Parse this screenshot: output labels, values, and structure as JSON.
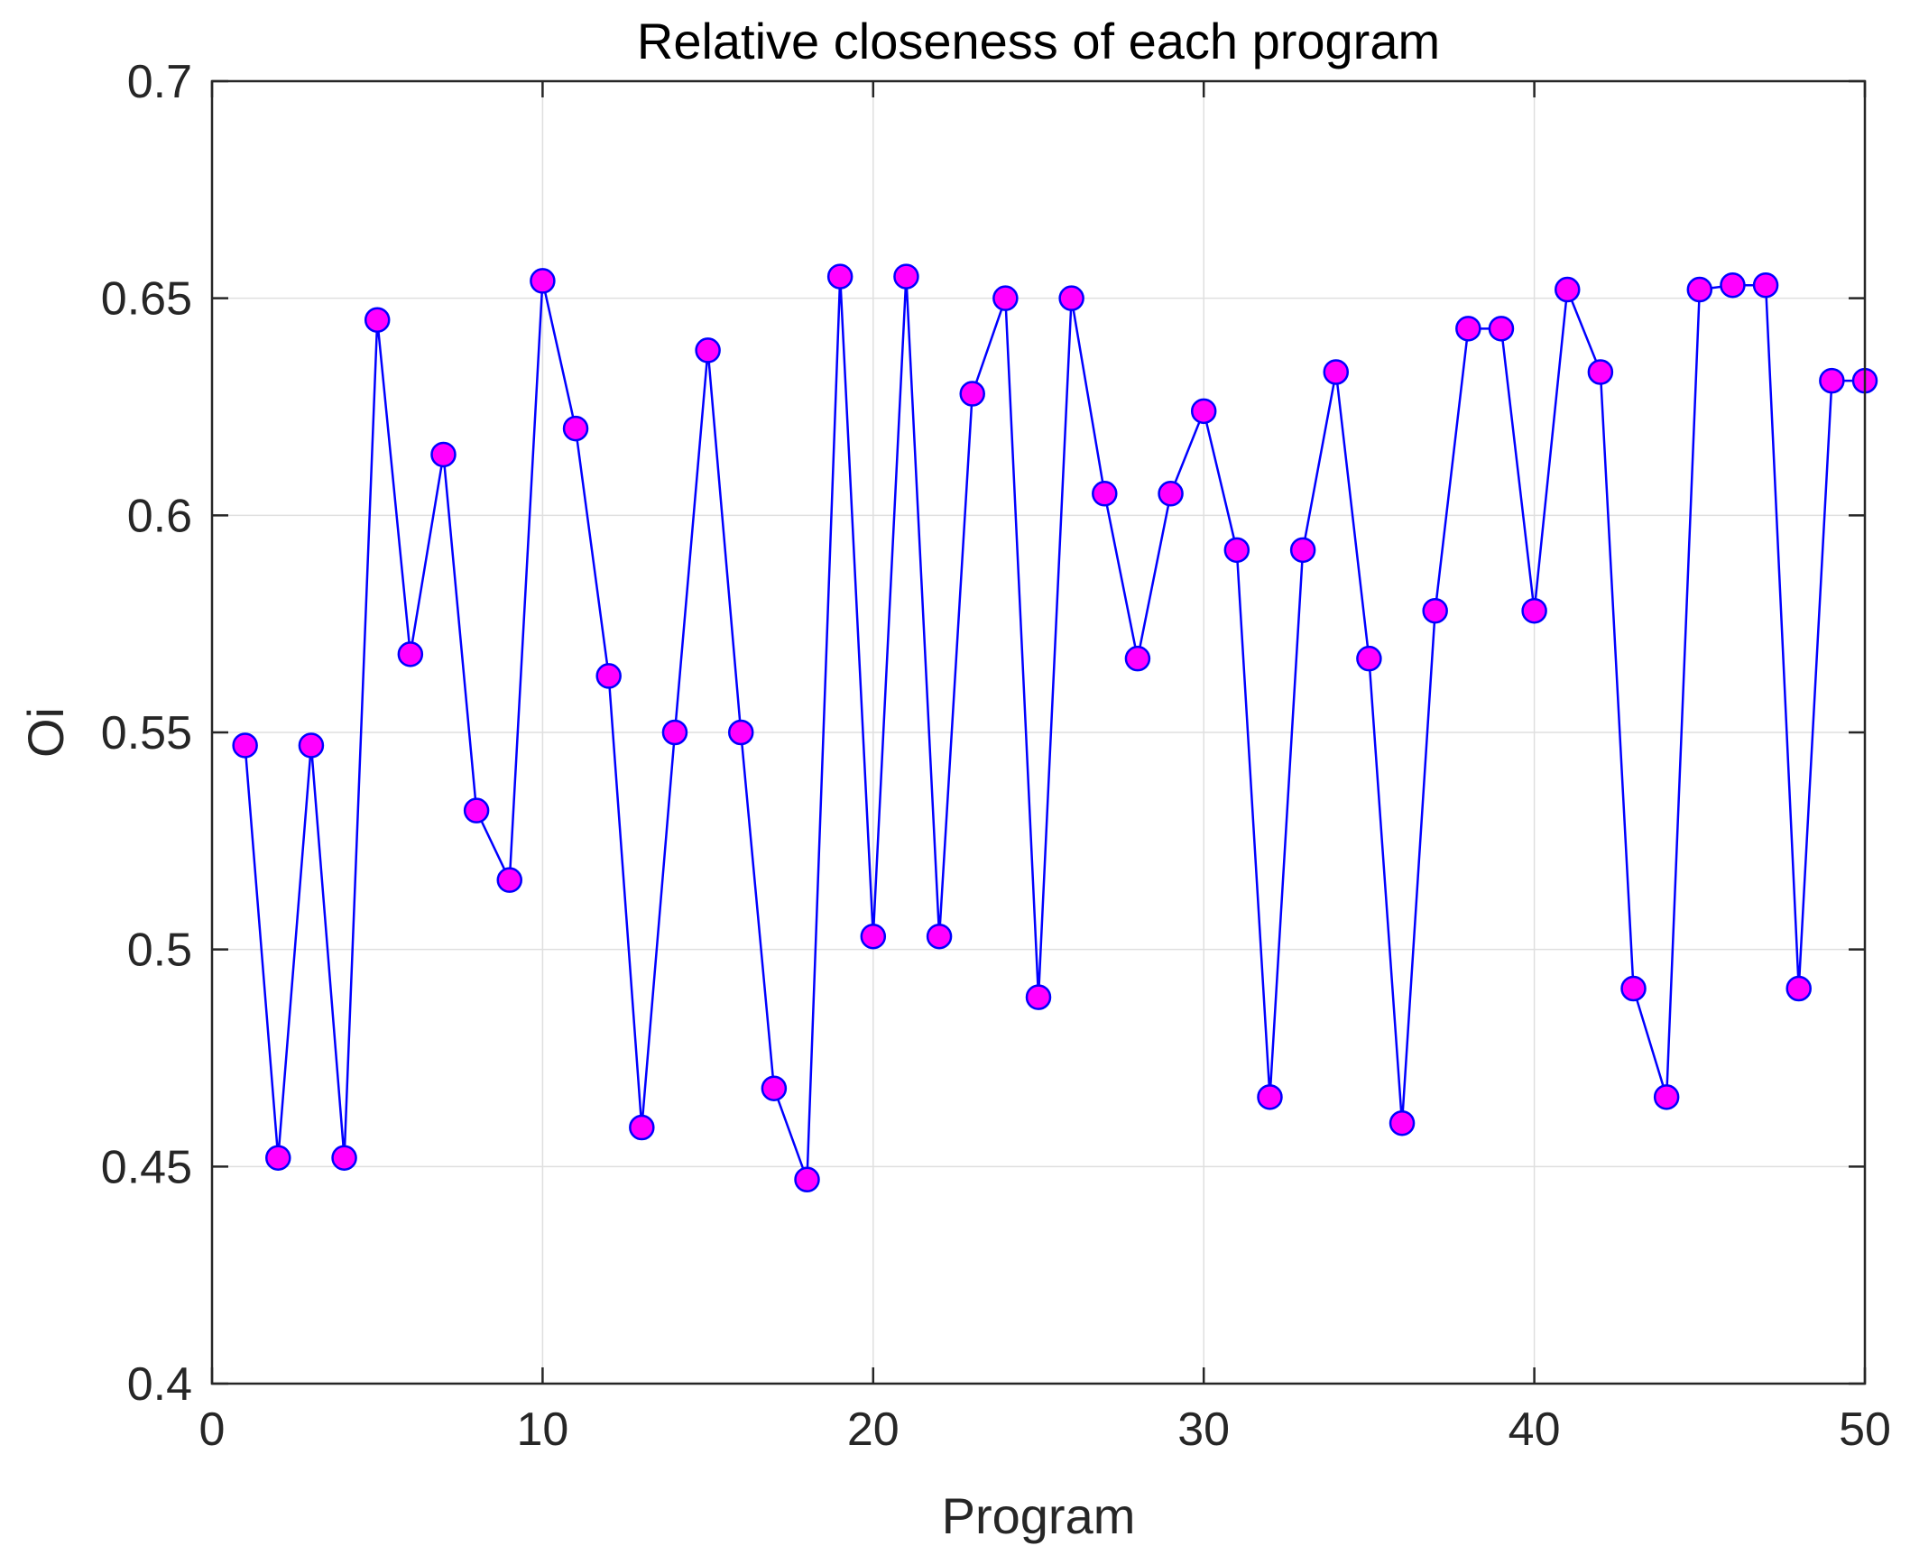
{
  "colors": {
    "line": "#0000FF",
    "marker_fill": "#FF00FF",
    "marker_edge": "#0000FF",
    "grid": "#dfdfdf",
    "axis": "#262626",
    "background": "#ffffff"
  },
  "chart_data": {
    "type": "line",
    "title": "Relative closeness of each program",
    "xlabel": "Program",
    "ylabel": "Oi",
    "xlim": [
      0,
      50
    ],
    "ylim": [
      0.4,
      0.7
    ],
    "xticks": [
      0,
      10,
      20,
      30,
      40,
      50
    ],
    "xtick_labels": [
      "0",
      "10",
      "20",
      "30",
      "40",
      "50"
    ],
    "yticks": [
      0.4,
      0.45,
      0.5,
      0.55,
      0.6,
      0.65,
      0.7
    ],
    "ytick_labels": [
      "0.4",
      "0.45",
      "0.5",
      "0.55",
      "0.6",
      "0.65",
      "0.7"
    ],
    "grid": true,
    "series": [
      {
        "name": "Oi",
        "marker": "circle",
        "x": [
          1,
          2,
          3,
          4,
          5,
          6,
          7,
          8,
          9,
          10,
          11,
          12,
          13,
          14,
          15,
          16,
          17,
          18,
          19,
          20,
          21,
          22,
          23,
          24,
          25,
          26,
          27,
          28,
          29,
          30,
          31,
          32,
          33,
          34,
          35,
          36,
          37,
          38,
          39,
          40,
          41,
          42,
          43,
          44,
          45,
          46,
          47,
          48,
          49,
          50
        ],
        "values": [
          0.547,
          0.452,
          0.547,
          0.452,
          0.645,
          0.568,
          0.614,
          0.532,
          0.516,
          0.654,
          0.62,
          0.563,
          0.459,
          0.55,
          0.638,
          0.55,
          0.468,
          0.447,
          0.655,
          0.503,
          0.655,
          0.503,
          0.628,
          0.65,
          0.489,
          0.65,
          0.605,
          0.567,
          0.605,
          0.624,
          0.592,
          0.466,
          0.592,
          0.633,
          0.567,
          0.46,
          0.578,
          0.643,
          0.643,
          0.578,
          0.652,
          0.633,
          0.491,
          0.466,
          0.652,
          0.653,
          0.653,
          0.491,
          0.631,
          0.631
        ]
      }
    ]
  }
}
